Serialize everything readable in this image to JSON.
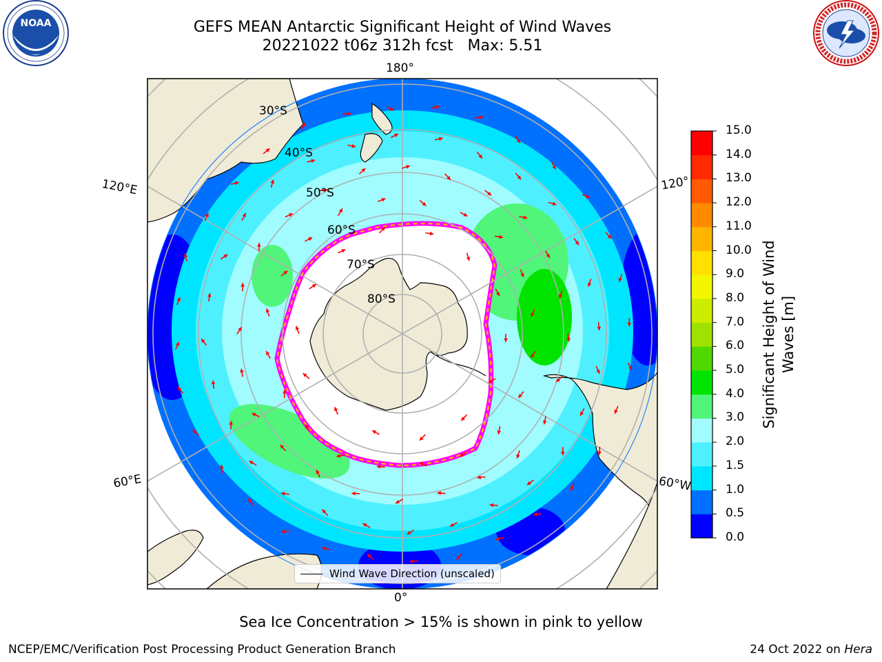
{
  "title": {
    "line1": "GEFS MEAN Antarctic Significant Height of Wind Waves",
    "line2": "20221022 t06z 312h fcst   Max: 5.51"
  },
  "logos": {
    "left": {
      "name": "noaa-logo",
      "text": "NOAA"
    },
    "right": {
      "name": "national-weather-service-logo",
      "text": "NATIONAL WEATHER SERVICE"
    }
  },
  "map": {
    "projection": "south-polar-stereographic",
    "longitude_labels": {
      "top": "180°",
      "bottom": "0°",
      "upper_left": "120°E",
      "lower_left": "60°E",
      "upper_right": "120°",
      "lower_right": "60°W"
    },
    "latitude_labels": [
      "30°S",
      "40°S",
      "50°S",
      "60°S",
      "70°S",
      "80°S"
    ],
    "legend_label": "Wind Wave Direction (unscaled)",
    "arrow_color": "#ff0000",
    "land_color": "#efebd7",
    "ice_color": "#ffffff",
    "ice_edge_colors": [
      "#ff00ff",
      "#ffb000",
      "#ffff66"
    ]
  },
  "colorbar": {
    "label": "Significant Height of Wind Waves [m]",
    "label_line1": "Significant Height of Wind",
    "label_line2": "Waves [m]",
    "ticks": [
      "0.0",
      "0.5",
      "1.0",
      "1.5",
      "2.0",
      "3.0",
      "4.0",
      "5.0",
      "6.0",
      "7.0",
      "8.0",
      "9.0",
      "10.0",
      "11.0",
      "12.0",
      "13.0",
      "14.0",
      "15.0"
    ],
    "colors": [
      "#0000ff",
      "#0070ff",
      "#00e5ff",
      "#4ef0ff",
      "#a0fcff",
      "#50f57a",
      "#00e400",
      "#50d800",
      "#9ee200",
      "#ccec00",
      "#f2f700",
      "#ffe000",
      "#ffb400",
      "#ff8a00",
      "#ff5a00",
      "#ff2a00",
      "#ff0000"
    ]
  },
  "bottom_note": "Sea Ice Concentration > 15% is shown in pink to yellow",
  "footer": {
    "left": "NCEP/EMC/Verification Post Processing Product Generation Branch",
    "right_date": "24 Oct 2022 on ",
    "right_machine": "Hera"
  }
}
